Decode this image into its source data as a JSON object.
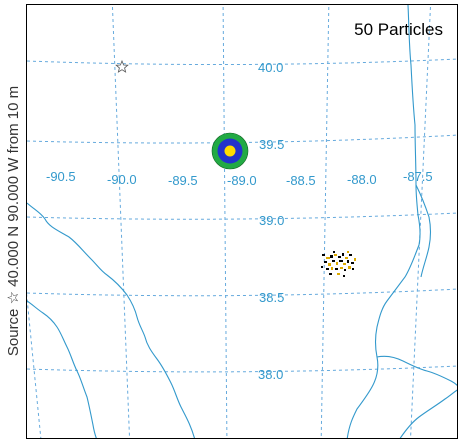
{
  "side_label": "Source ☆ 40.000 N 90.000 W from 10 m",
  "particles_label": "50 Particles",
  "grid": {
    "longitudes": [
      "-90.5",
      "-90.0",
      "-89.5",
      "-89.0",
      "-88.5",
      "-88.0",
      "-87.5"
    ],
    "latitudes": [
      "40.0",
      "39.5",
      "39.0",
      "38.5",
      "38.0"
    ]
  },
  "colors": {
    "grid": "#3399cc",
    "boundaries": "#3399cc",
    "rings": [
      "#22aa44",
      "#2233cc",
      "#ffdd00"
    ],
    "particles": [
      "#000000",
      "#ddaa00"
    ]
  },
  "source_marker": {
    "icon": "star-outline-icon",
    "lat": 40.0,
    "lon": -90.0
  },
  "release_marker": {
    "icon": "concentric-rings-icon",
    "lat": 39.44,
    "lon": -89.05
  },
  "particle_cluster": {
    "center_lat": 38.72,
    "center_lon": -87.93,
    "count": 50
  }
}
